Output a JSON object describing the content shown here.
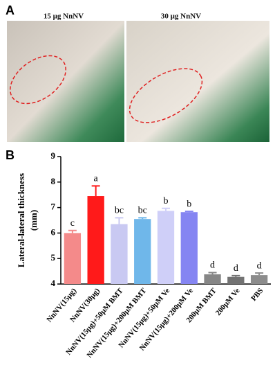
{
  "panel_a": {
    "label": "A",
    "captions": [
      "15 μg NnNV",
      "30 μg NnNV"
    ]
  },
  "chart_data": {
    "type": "bar",
    "panel_label": "B",
    "ylabel": [
      "Lateral-lateral thickness",
      "(mm)"
    ],
    "categories": [
      "NnNV(15μg)",
      "NnNV(30μg)",
      "NnNV(15μg)+50μM BMT",
      "NnNV(15μg)+200μM BMT",
      "NnNV(15μg)+50μM Ve",
      "NnNV(15μg)+200μM Ve",
      "200μM BMT",
      "200μM Ve",
      "PBS"
    ],
    "values": [
      6.0,
      7.45,
      6.35,
      6.55,
      6.87,
      6.82,
      4.38,
      4.28,
      4.35
    ],
    "errors": [
      0.1,
      0.4,
      0.25,
      0.05,
      0.1,
      0.03,
      0.07,
      0.05,
      0.08
    ],
    "annotations": [
      "c",
      "a",
      "bc",
      "bc",
      "b",
      "b",
      "d",
      "d",
      "d"
    ],
    "colors": [
      "#f48a8a",
      "#ff1a1a",
      "#c9c9f2",
      "#6fb7ea",
      "#cfcff8",
      "#8585f2",
      "#868686",
      "#737373",
      "#8c8c8c"
    ],
    "ylim": [
      4,
      9
    ],
    "yticks": [
      4,
      5,
      6,
      7,
      8,
      9
    ]
  }
}
